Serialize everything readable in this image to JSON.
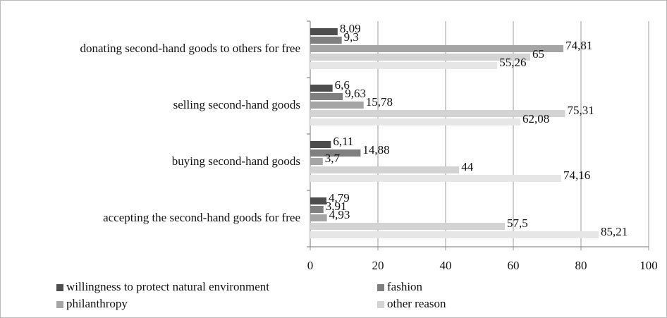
{
  "chart_data": {
    "type": "bar",
    "orientation": "horizontal",
    "categories": [
      "donating second-hand goods to others for free",
      "selling second-hand goods",
      "buying second-hand goods",
      "accepting the second-hand goods for free"
    ],
    "series": [
      {
        "name": "willingness to protect natural environment",
        "color": "#4d4d4d",
        "values": [
          8.09,
          6.6,
          6.11,
          4.79
        ],
        "value_labels": [
          "8,09",
          "6,6",
          "6,11",
          "4,79"
        ]
      },
      {
        "name": "fashion",
        "color": "#7f7f7f",
        "values": [
          9.3,
          9.63,
          14.88,
          3.91
        ],
        "value_labels": [
          "9,3",
          "9,63",
          "14,88",
          "3,91"
        ]
      },
      {
        "name": "philanthropy",
        "color": "#a5a5a5",
        "values": [
          74.81,
          15.78,
          3.7,
          4.93
        ],
        "value_labels": [
          "74,81",
          "15,78",
          "3,7",
          "4,93"
        ]
      },
      {
        "name": "other reason",
        "color": "#d3d3d3",
        "values": [
          65,
          75.31,
          44,
          57.5
        ],
        "value_labels": [
          "65",
          "75,31",
          "44",
          "57,5"
        ]
      },
      {
        "color": "#e6e6e6",
        "values": [
          55.26,
          62.08,
          74.16,
          85.21
        ],
        "value_labels": [
          "55,26",
          "62,08",
          "74,16",
          "85,21"
        ]
      }
    ],
    "xlim": [
      0,
      100
    ],
    "xticks": [
      0,
      20,
      40,
      60,
      80,
      100
    ],
    "grid": true
  }
}
